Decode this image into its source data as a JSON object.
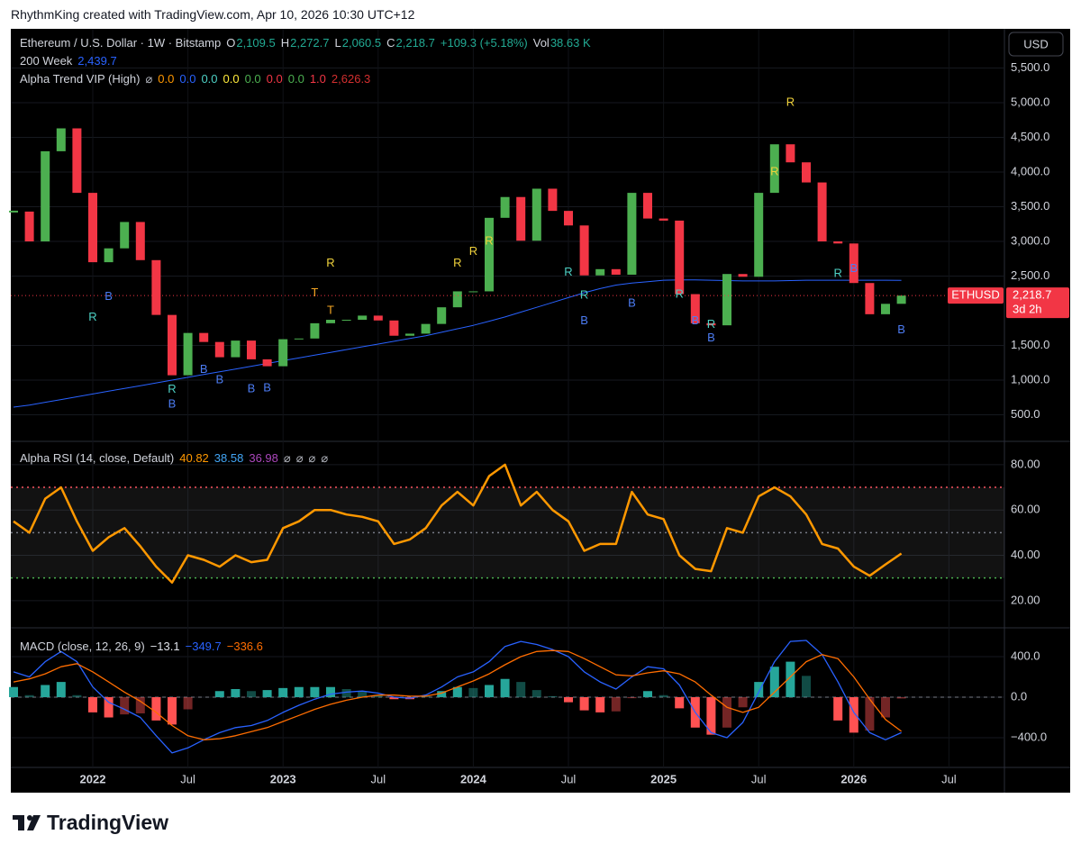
{
  "header": {
    "credit": "RhythmKing created with TradingView.com, Apr 10, 2026 10:30 UTC+12",
    "currency": "USD",
    "brand": "TradingView"
  },
  "chart_data": [
    {
      "type": "candlestick",
      "title": "Ethereum / U.S. Dollar · 1W · Bitstamp",
      "readouts": [
        {
          "label": "O",
          "text": "2,109.5",
          "color": "#22ab94"
        },
        {
          "label": "H",
          "text": "2,272.7",
          "color": "#22ab94"
        },
        {
          "label": "L",
          "text": "2,060.5",
          "color": "#22ab94"
        },
        {
          "label": "C",
          "text": "2,218.7",
          "color": "#22ab94"
        },
        {
          "text": "+109.3 (+5.18%)",
          "color": "#22ab94"
        },
        {
          "label": "Vol",
          "text": "38.63 K",
          "color": "#22ab94"
        }
      ],
      "indicator": {
        "name": "Alpha Trend VIP (High)",
        "readouts": [
          {
            "text": "⌀",
            "color": "#b2b5be"
          },
          {
            "text": "0.0",
            "color": "#ff9800"
          },
          {
            "text": "0.0",
            "color": "#2962ff"
          },
          {
            "text": "0.0",
            "color": "#4dd0c4"
          },
          {
            "text": "0.0",
            "color": "#ffeb3b"
          },
          {
            "text": "0.0",
            "color": "#4caf50"
          },
          {
            "text": "0.0",
            "color": "#f23645"
          },
          {
            "text": "0.0",
            "color": "#4caf50"
          },
          {
            "text": "1.0",
            "color": "#f23645"
          },
          {
            "text": "2,626.3",
            "color": "#d32f2f"
          }
        ]
      },
      "categories": [
        "2021-08",
        "2021-09",
        "2021-10",
        "2021-11",
        "2021-12",
        "2022-01",
        "2022-02",
        "2022-03",
        "2022-04",
        "2022-05",
        "2022-06",
        "2022-07",
        "2022-08",
        "2022-09",
        "2022-10",
        "2022-11",
        "2022-12",
        "2023-01",
        "2023-02",
        "2023-03",
        "2023-04",
        "2023-05",
        "2023-06",
        "2023-07",
        "2023-08",
        "2023-09",
        "2023-10",
        "2023-11",
        "2023-12",
        "2024-01",
        "2024-02",
        "2024-03",
        "2024-04",
        "2024-05",
        "2024-06",
        "2024-07",
        "2024-08",
        "2024-09",
        "2024-10",
        "2024-11",
        "2024-12",
        "2025-01",
        "2025-02",
        "2025-03",
        "2025-04",
        "2025-05",
        "2025-06",
        "2025-07",
        "2025-08",
        "2025-09",
        "2025-10",
        "2025-11",
        "2025-12",
        "2026-01",
        "2026-02",
        "2026-03",
        "2026-04",
        "2026-05",
        "2026-06",
        "2026-07"
      ],
      "xticks": [
        {
          "value": "2022-01",
          "label": "2022"
        },
        {
          "value": "2022-07",
          "label": "Jul"
        },
        {
          "value": "2023-01",
          "label": "2023"
        },
        {
          "value": "2023-07",
          "label": "Jul"
        },
        {
          "value": "2024-01",
          "label": "2024"
        },
        {
          "value": "2024-07",
          "label": "Jul"
        },
        {
          "value": "2025-01",
          "label": "2025"
        },
        {
          "value": "2025-07",
          "label": "Jul"
        },
        {
          "value": "2026-01",
          "label": "2026"
        },
        {
          "value": "2026-07",
          "label": "Jul"
        }
      ],
      "series": [
        {
          "name": "ETHUSD",
          "color": "#4caf50",
          "down_color": "#f23645",
          "values": [
            3430,
            3000,
            4300,
            4630,
            3700,
            2700,
            2900,
            3280,
            2730,
            1940,
            1070,
            1680,
            1550,
            1330,
            1570,
            1300,
            1200,
            1590,
            1600,
            1820,
            1870,
            1870,
            1930,
            1860,
            1640,
            1670,
            1810,
            2050,
            2280,
            2280,
            3340,
            3640,
            3010,
            3760,
            3440,
            3230,
            2510,
            2600,
            2520,
            3700,
            3330,
            3300,
            2240,
            1820,
            1790,
            2530,
            2490,
            3700,
            4400,
            4140,
            3850,
            3000,
            2970,
            2400,
            1950,
            2100,
            2218.7,
            null,
            null,
            null
          ]
        },
        {
          "name": "200 Week",
          "color": "#2962ff",
          "value_label": "2,439.7",
          "values": [
            610,
            640,
            680,
            720,
            760,
            800,
            840,
            880,
            920,
            960,
            1000,
            1040,
            1080,
            1120,
            1160,
            1200,
            1240,
            1280,
            1320,
            1360,
            1400,
            1440,
            1480,
            1520,
            1560,
            1600,
            1640,
            1690,
            1740,
            1790,
            1850,
            1910,
            1980,
            2050,
            2120,
            2190,
            2260,
            2320,
            2370,
            2400,
            2420,
            2440,
            2445,
            2445,
            2440,
            2435,
            2430,
            2430,
            2430,
            2435,
            2440,
            2440,
            2440,
            2440,
            2440,
            2440,
            2439.7,
            null,
            null,
            null
          ]
        }
      ],
      "last_price": {
        "symbol": "ETHUSD",
        "value_label": "2,218.7",
        "countdown": "3d 2h",
        "color": "#f23645"
      },
      "annotations": [
        {
          "text": "R",
          "x": "2022-01",
          "y": 1900,
          "color": "#4dd0c4"
        },
        {
          "text": "B",
          "x": "2022-02",
          "y": 2200,
          "color": "#4c7cf3"
        },
        {
          "text": "R",
          "x": "2022-06",
          "y": 860,
          "color": "#4dd0c4"
        },
        {
          "text": "B",
          "x": "2022-06",
          "y": 650,
          "color": "#4c7cf3"
        },
        {
          "text": "B",
          "x": "2022-08",
          "y": 1150,
          "color": "#4c7cf3"
        },
        {
          "text": "B",
          "x": "2022-09",
          "y": 1000,
          "color": "#4c7cf3"
        },
        {
          "text": "B",
          "x": "2022-11",
          "y": 870,
          "color": "#4c7cf3"
        },
        {
          "text": "B",
          "x": "2022-12",
          "y": 880,
          "color": "#4c7cf3"
        },
        {
          "text": "T",
          "x": "2023-03",
          "y": 2250,
          "color": "#f5a623"
        },
        {
          "text": "T",
          "x": "2023-04",
          "y": 2000,
          "color": "#f5a623"
        },
        {
          "text": "R",
          "x": "2023-04",
          "y": 2680,
          "color": "#f0d23c"
        },
        {
          "text": "R",
          "x": "2023-12",
          "y": 2680,
          "color": "#f0d23c"
        },
        {
          "text": "R",
          "x": "2024-01",
          "y": 2850,
          "color": "#f0d23c"
        },
        {
          "text": "R",
          "x": "2024-02",
          "y": 3000,
          "color": "#f0d23c"
        },
        {
          "text": "R",
          "x": "2024-07",
          "y": 2550,
          "color": "#4dd0c4"
        },
        {
          "text": "R",
          "x": "2024-08",
          "y": 2220,
          "color": "#4dd0c4"
        },
        {
          "text": "B",
          "x": "2024-08",
          "y": 1850,
          "color": "#4c7cf3"
        },
        {
          "text": "B",
          "x": "2024-11",
          "y": 2100,
          "color": "#4c7cf3"
        },
        {
          "text": "R",
          "x": "2025-02",
          "y": 2230,
          "color": "#4dd0c4"
        },
        {
          "text": "B",
          "x": "2025-03",
          "y": 1850,
          "color": "#4c7cf3"
        },
        {
          "text": "R",
          "x": "2025-04",
          "y": 1800,
          "color": "#4dd0c4"
        },
        {
          "text": "B",
          "x": "2025-04",
          "y": 1600,
          "color": "#4c7cf3"
        },
        {
          "text": "R",
          "x": "2025-08",
          "y": 4000,
          "color": "#f0d23c"
        },
        {
          "text": "R",
          "x": "2025-09",
          "y": 5000,
          "color": "#f0d23c"
        },
        {
          "text": "R",
          "x": "2025-12",
          "y": 2530,
          "color": "#4dd0c4"
        },
        {
          "text": "B",
          "x": "2026-01",
          "y": 2600,
          "color": "#4c7cf3"
        },
        {
          "text": "B",
          "x": "2026-04",
          "y": 1720,
          "color": "#4c7cf3"
        }
      ],
      "ylim": [
        117,
        6065
      ],
      "yticks": [
        {
          "value": 500,
          "label": "500.0"
        },
        {
          "value": 1000,
          "label": "1,000.0"
        },
        {
          "value": 1500,
          "label": "1,500.0"
        },
        {
          "value": 2500,
          "label": "2,500.0"
        },
        {
          "value": 3000,
          "label": "3,000.0"
        },
        {
          "value": 3500,
          "label": "3,500.0"
        },
        {
          "value": 4000,
          "label": "4,000.0"
        },
        {
          "value": 4500,
          "label": "4,500.0"
        },
        {
          "value": 5000,
          "label": "5,000.0"
        },
        {
          "value": 5500,
          "label": "5,500.0"
        }
      ],
      "grid": true
    },
    {
      "type": "line",
      "title": "Alpha RSI (14, close, Default)",
      "readouts": [
        {
          "text": "40.82",
          "color": "#ff9800"
        },
        {
          "text": "38.58",
          "color": "#42a5f5"
        },
        {
          "text": "36.98",
          "color": "#ab47bc"
        },
        {
          "text": "⌀",
          "color": "#b2b5be"
        },
        {
          "text": "⌀",
          "color": "#b2b5be"
        },
        {
          "text": "⌀",
          "color": "#b2b5be"
        },
        {
          "text": "⌀",
          "color": "#b2b5be"
        }
      ],
      "series": [
        {
          "color": "#ff9800",
          "values": [
            55,
            50,
            65,
            70,
            55,
            42,
            48,
            52,
            44,
            35,
            28,
            40,
            38,
            35,
            40,
            37,
            38,
            52,
            55,
            60,
            60,
            58,
            57,
            55,
            45,
            47,
            52,
            62,
            68,
            62,
            75,
            80,
            62,
            68,
            60,
            55,
            42,
            45,
            45,
            68,
            58,
            56,
            40,
            34,
            33,
            52,
            50,
            66,
            70,
            66,
            58,
            45,
            43,
            35,
            31,
            36,
            40.82,
            null,
            null,
            null
          ]
        }
      ],
      "bands": [
        {
          "value": 70,
          "color": "#f7525f"
        },
        {
          "value": 50,
          "color": "#787b86"
        },
        {
          "value": 30,
          "color": "#4caf50"
        }
      ],
      "ylim": [
        8,
        90.3
      ],
      "yticks": [
        {
          "value": 20,
          "label": "20.00"
        },
        {
          "value": 40,
          "label": "40.00"
        },
        {
          "value": 60,
          "label": "60.00"
        },
        {
          "value": 80,
          "label": "80.00"
        }
      ],
      "grid": true
    },
    {
      "type": "macd",
      "title": "MACD (close, 12, 26, 9)",
      "readouts": [
        {
          "text": "−13.1",
          "color": "#e0e3eb"
        },
        {
          "text": "−349.7",
          "color": "#2962ff"
        },
        {
          "text": "−336.6",
          "color": "#ff6d00"
        }
      ],
      "series": [
        {
          "color": "#26a69a",
          "down_color": "#ff5252",
          "values": [
            100,
            20,
            120,
            150,
            20,
            -150,
            -200,
            -170,
            -160,
            -230,
            -270,
            -120,
            0,
            60,
            80,
            60,
            70,
            90,
            100,
            100,
            100,
            80,
            60,
            20,
            -20,
            -20,
            10,
            60,
            100,
            90,
            120,
            180,
            150,
            70,
            10,
            -50,
            -130,
            -150,
            -140,
            -10,
            60,
            20,
            -110,
            -300,
            -370,
            -300,
            -100,
            150,
            300,
            350,
            210,
            0,
            -230,
            -350,
            -330,
            -200,
            -13.1,
            null,
            null,
            null
          ]
        },
        {
          "color": "#2962ff",
          "values": [
            250,
            200,
            350,
            450,
            350,
            100,
            -50,
            -120,
            -200,
            -380,
            -550,
            -500,
            -420,
            -350,
            -300,
            -280,
            -230,
            -150,
            -80,
            -20,
            30,
            50,
            60,
            40,
            0,
            -10,
            20,
            100,
            200,
            250,
            350,
            500,
            550,
            520,
            470,
            400,
            250,
            150,
            80,
            200,
            300,
            280,
            120,
            -150,
            -350,
            -400,
            -250,
            50,
            350,
            550,
            560,
            420,
            150,
            -150,
            -350,
            -420,
            -349.7,
            null,
            null,
            null
          ]
        },
        {
          "color": "#ff6d00",
          "values": [
            150,
            180,
            230,
            300,
            330,
            250,
            150,
            50,
            -40,
            -150,
            -280,
            -380,
            -420,
            -410,
            -380,
            -340,
            -300,
            -240,
            -180,
            -120,
            -70,
            -30,
            0,
            20,
            20,
            10,
            10,
            40,
            100,
            160,
            230,
            320,
            400,
            450,
            460,
            450,
            380,
            300,
            220,
            210,
            240,
            260,
            230,
            150,
            20,
            -100,
            -150,
            -100,
            50,
            200,
            350,
            420,
            380,
            200,
            -20,
            -220,
            -336.6,
            null,
            null,
            null
          ]
        }
      ],
      "ylim": [
        -693,
        684
      ],
      "yticks": [
        {
          "value": -400,
          "label": "−400.0"
        },
        {
          "value": 0,
          "label": "0.0"
        },
        {
          "value": 400,
          "label": "400.0"
        }
      ],
      "grid": true
    }
  ]
}
